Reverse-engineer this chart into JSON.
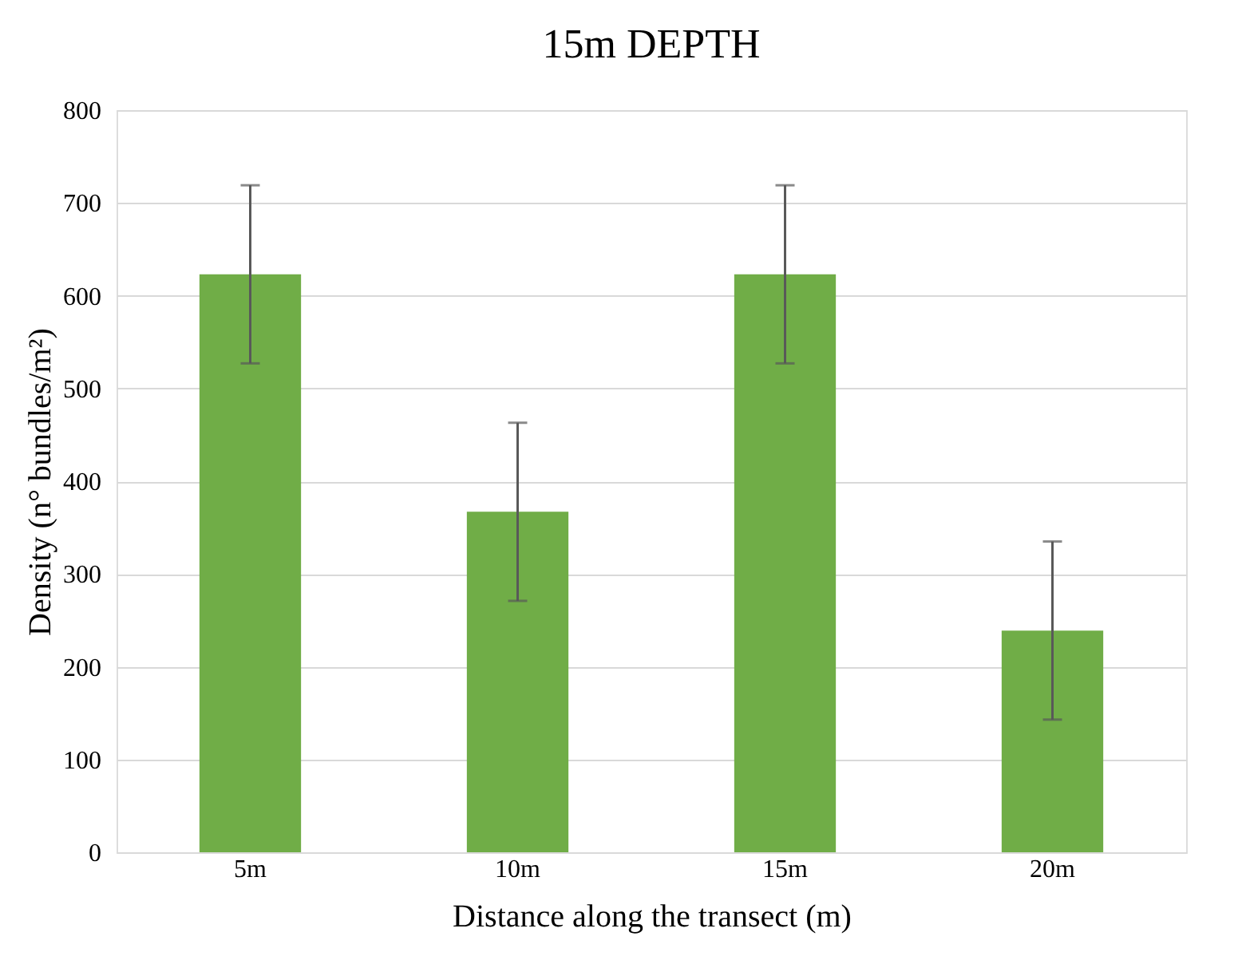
{
  "chart_data": {
    "type": "bar",
    "title": "15m DEPTH",
    "xlabel": "Distance along the transect (m)",
    "ylabel": "Density (n° bundles/m²)",
    "categories": [
      "5m",
      "10m",
      "15m",
      "20m"
    ],
    "values": [
      623,
      367,
      623,
      239
    ],
    "errors": [
      96,
      96,
      96,
      96
    ],
    "color": "#70ad47",
    "ylim": [
      0,
      800
    ],
    "yticks": [
      0,
      100,
      200,
      300,
      400,
      500,
      600,
      700,
      800
    ],
    "grid": "y"
  }
}
